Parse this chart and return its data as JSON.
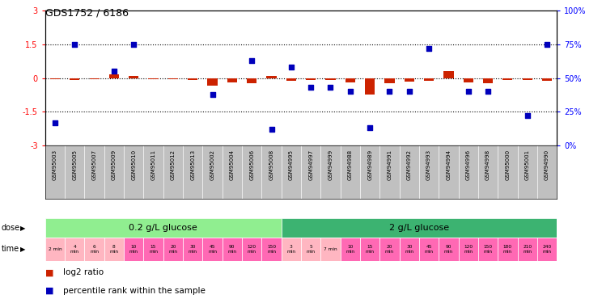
{
  "title": "GDS1752 / 6186",
  "samples": [
    "GSM95003",
    "GSM95005",
    "GSM95007",
    "GSM95009",
    "GSM95010",
    "GSM95011",
    "GSM95012",
    "GSM95013",
    "GSM95002",
    "GSM95004",
    "GSM95006",
    "GSM95008",
    "GSM94995",
    "GSM94997",
    "GSM94999",
    "GSM94988",
    "GSM94989",
    "GSM94991",
    "GSM94992",
    "GSM94993",
    "GSM94994",
    "GSM94996",
    "GSM94998",
    "GSM95000",
    "GSM95001",
    "GSM94990"
  ],
  "log2_ratio": [
    -0.05,
    -0.08,
    -0.04,
    0.18,
    0.1,
    -0.06,
    -0.05,
    -0.07,
    -0.35,
    -0.2,
    -0.22,
    0.1,
    -0.12,
    -0.08,
    -0.1,
    -0.18,
    -0.75,
    -0.22,
    -0.15,
    -0.12,
    0.3,
    -0.18,
    -0.22,
    -0.08,
    -0.1,
    -0.12
  ],
  "percentile_rank_pct": [
    17,
    75,
    null,
    55,
    75,
    null,
    null,
    null,
    38,
    null,
    63,
    12,
    58,
    43,
    43,
    40,
    13,
    40,
    40,
    72,
    null,
    40,
    40,
    null,
    22,
    75
  ],
  "dose_groups": [
    {
      "label": "0.2 g/L glucose",
      "start": 0,
      "end": 11,
      "color": "#90EE90"
    },
    {
      "label": "2 g/L glucose",
      "start": 12,
      "end": 25,
      "color": "#3CB371"
    }
  ],
  "time_labels": [
    "2 min",
    "4\nmin",
    "6\nmin",
    "8\nmin",
    "10\nmin",
    "15\nmin",
    "20\nmin",
    "30\nmin",
    "45\nmin",
    "90\nmin",
    "120\nmin",
    "150\nmin",
    "3\nmin",
    "5\nmin",
    "7 min",
    "10\nmin",
    "15\nmin",
    "20\nmin",
    "30\nmin",
    "45\nmin",
    "90\nmin",
    "120\nmin",
    "150\nmin",
    "180\nmin",
    "210\nmin",
    "240\nmin"
  ],
  "time_colors": [
    "#FFB6C1",
    "#FFB6C1",
    "#FFB6C1",
    "#FFB6C1",
    "#FF69B4",
    "#FF69B4",
    "#FF69B4",
    "#FF69B4",
    "#FF69B4",
    "#FF69B4",
    "#FF69B4",
    "#FF69B4",
    "#FFB6C1",
    "#FFB6C1",
    "#FFB6C1",
    "#FF69B4",
    "#FF69B4",
    "#FF69B4",
    "#FF69B4",
    "#FF69B4",
    "#FF69B4",
    "#FF69B4",
    "#FF69B4",
    "#FF69B4",
    "#FF69B4",
    "#FF69B4"
  ],
  "ylim_left": [
    -3,
    3
  ],
  "ylim_right": [
    0,
    100
  ],
  "bar_color_red": "#CC2200",
  "dot_color_blue": "#0000BB",
  "background_color": "#FFFFFF",
  "plot_bg_color": "#FFFFFF",
  "sample_bg_color": "#C0C0C0",
  "left_yticks": [
    -3,
    -1.5,
    0,
    1.5,
    3
  ],
  "left_yticklabels": [
    "-3",
    "-1.5",
    "0",
    "1.5",
    "3"
  ],
  "right_yticks": [
    0,
    25,
    50,
    75,
    100
  ],
  "right_yticklabels": [
    "0%",
    "25%",
    "50%",
    "75%",
    "100%"
  ]
}
